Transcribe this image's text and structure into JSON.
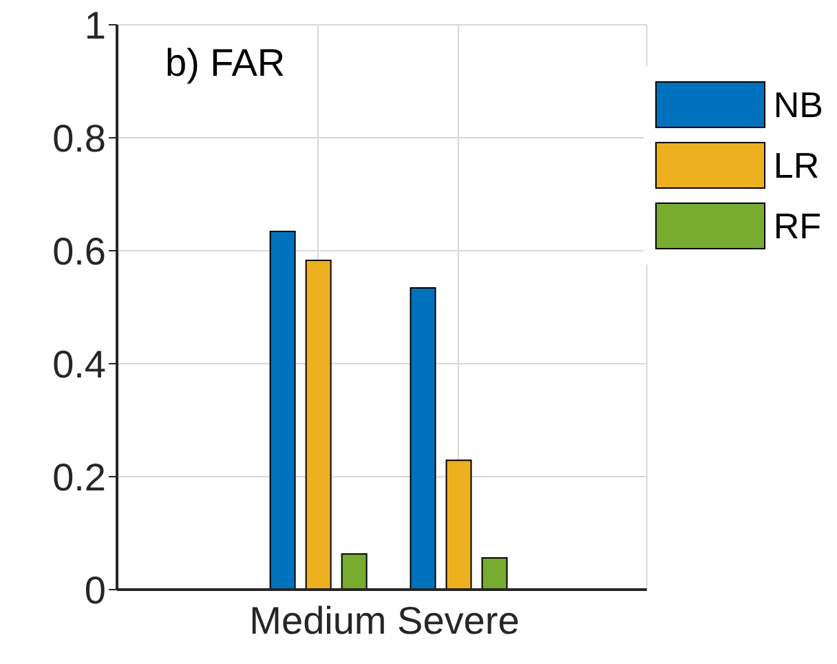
{
  "chart_data": {
    "type": "bar",
    "annotations": [
      "b) FAR"
    ],
    "categories": [
      "Medium",
      "Severe"
    ],
    "series": [
      {
        "name": "NB",
        "color": "#0072bd",
        "values": [
          0.634,
          0.534
        ]
      },
      {
        "name": "LR",
        "color": "#edb120",
        "values": [
          0.583,
          0.229
        ]
      },
      {
        "name": "RF",
        "color": "#77ac30",
        "values": [
          0.063,
          0.056
        ]
      }
    ],
    "ylim": [
      0,
      1
    ],
    "yticks": [
      0,
      0.2,
      0.4,
      0.6,
      0.8,
      1
    ],
    "grid": true,
    "legend": "top right"
  }
}
